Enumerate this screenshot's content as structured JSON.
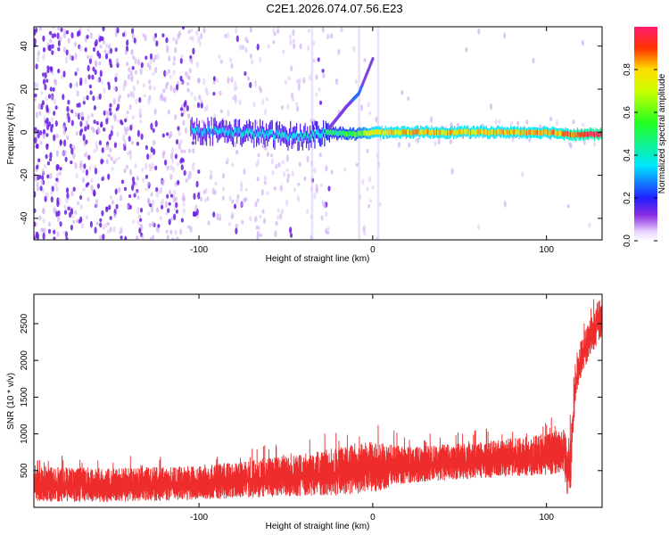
{
  "title": "C2E1.2026.074.07.56.E23",
  "colors": {
    "snr_line": "#ee2c2c",
    "ridge": "#ff1a1a",
    "axis": "#000000",
    "scatter_light": "#c9a7f0",
    "scatter_dark": "#6a1fe0"
  },
  "chart_data": [
    {
      "type": "heatmap",
      "name": "spectrogram",
      "xlabel": "Height of straight line (km)",
      "ylabel": "Frequency (Hz)",
      "xlim": [
        -195,
        132
      ],
      "ylim": [
        -50,
        49
      ],
      "xticks": [
        -100,
        0,
        100
      ],
      "xtick_labels": [
        "-100",
        "0",
        "100"
      ],
      "yticks": [
        -40,
        -20,
        0,
        20,
        40
      ],
      "ytick_labels": [
        "-40",
        "-20",
        "0",
        "20",
        "40"
      ],
      "ridge": {
        "description": "dominant frequency band",
        "x": [
          -105,
          -80,
          -60,
          -40,
          -25,
          -10,
          0,
          20,
          40,
          60,
          80,
          100,
          115,
          132
        ],
        "freq": [
          1,
          0,
          -1,
          -2,
          0,
          -1,
          0,
          0,
          0,
          0,
          0,
          0,
          -1,
          -1
        ],
        "amplitude": [
          0.3,
          0.35,
          0.35,
          0.35,
          0.45,
          0.55,
          0.75,
          0.8,
          0.8,
          0.78,
          0.8,
          0.8,
          0.9,
          1.0
        ]
      },
      "secondary_line": {
        "x": [
          -25,
          -15,
          -8,
          0
        ],
        "freq": [
          2,
          12,
          18,
          34
        ]
      },
      "colorbar": {
        "label": "Normalized spectral amplitude",
        "range": [
          0,
          1
        ],
        "ticks": [
          0.0,
          0.2,
          0.4,
          0.6,
          0.8
        ],
        "tick_labels": [
          "0.0",
          "0.2",
          "0.4",
          "0.6",
          "0.8"
        ]
      }
    },
    {
      "type": "line",
      "name": "snr",
      "xlabel": "Height of straight line (km)",
      "ylabel": "SNR (10 * v/v)",
      "xlim": [
        -195,
        132
      ],
      "ylim": [
        0,
        2900
      ],
      "xticks": [
        -100,
        0,
        100
      ],
      "xtick_labels": [
        "-100",
        "0",
        "100"
      ],
      "yticks": [
        500,
        1000,
        1500,
        2000,
        2500
      ],
      "ytick_labels": [
        "500",
        "1000",
        "1500",
        "2000",
        "2500"
      ],
      "series": [
        {
          "name": "SNR",
          "x": [
            -195,
            -150,
            -100,
            -50,
            -20,
            0,
            20,
            50,
            80,
            100,
            110,
            112,
            114,
            115,
            117,
            120,
            125,
            130,
            132
          ],
          "lower": [
            80,
            70,
            100,
            150,
            160,
            200,
            330,
            380,
            420,
            440,
            480,
            150,
            250,
            900,
            1450,
            1800,
            2050,
            2250,
            2300
          ],
          "upper": [
            560,
            540,
            560,
            700,
            820,
            900,
            820,
            870,
            940,
            1000,
            1080,
            900,
            1100,
            1500,
            1950,
            2300,
            2550,
            2850,
            2850
          ]
        }
      ]
    }
  ]
}
